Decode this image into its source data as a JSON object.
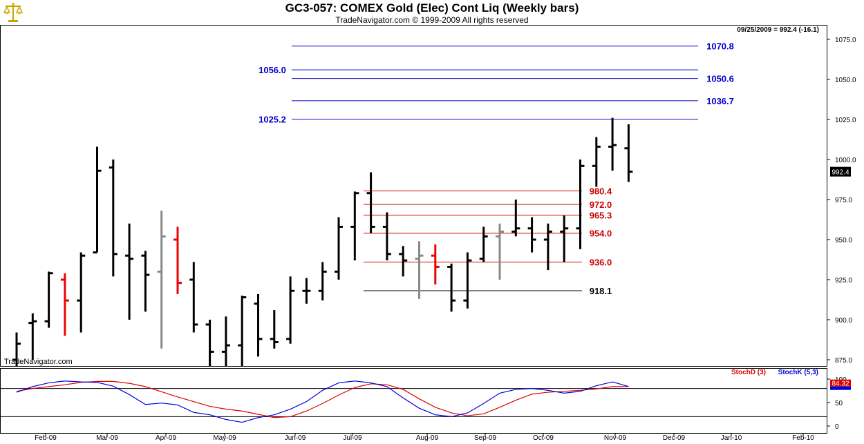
{
  "header": {
    "title": "GC3-057:  COMEX Gold (Elec) Cont Liq  (Weekly bars)",
    "subtitle": "TradeNavigator.com © 1999-2009 All rights reserved",
    "last_quote": "09/25/2009 = 992.4 (-16.1)",
    "watermark": "TradeNavigator.com",
    "logo_icon": "scales-of-justice-icon"
  },
  "chart_data": [
    {
      "type": "ohlc",
      "title": "GC3-057:  COMEX Gold (Elec) Cont Liq  (Weekly bars)",
      "ylim": [
        872,
        1085
      ],
      "y_ticks": [
        "875.0",
        "900.0",
        "925.0",
        "950.0",
        "975.0",
        "1000.0",
        "1025.0",
        "1050.0",
        "1075.0"
      ],
      "x_ticks": [
        "Feb-09",
        "Mar-09",
        "Apr-09",
        "May-09",
        "Jun-09",
        "Jul-09",
        "Aug-09",
        "Sep-09",
        "Oct-09",
        "Nov-09",
        "Dec-09",
        "Jan-10",
        "Feb-10"
      ],
      "last_price_label": "992.4",
      "bar_colors": {
        "up": "#000000",
        "down_red": "#ee0000",
        "neutral_gray": "#888888"
      },
      "bars": [
        {
          "week": 0,
          "open": 875,
          "high": 892,
          "low": 862,
          "close": 885,
          "color": "black"
        },
        {
          "week": 1,
          "open": 898,
          "high": 904,
          "low": 875,
          "close": 899,
          "color": "black"
        },
        {
          "week": 2,
          "open": 899,
          "high": 930,
          "low": 895,
          "close": 929,
          "color": "black"
        },
        {
          "week": 3,
          "open": 925,
          "high": 929,
          "low": 890,
          "close": 912,
          "color": "red"
        },
        {
          "week": 4,
          "open": 912,
          "high": 942,
          "low": 892,
          "close": 940,
          "color": "black"
        },
        {
          "week": 5,
          "open": 942,
          "high": 1008,
          "low": 942,
          "close": 993,
          "color": "black"
        },
        {
          "week": 6,
          "open": 995,
          "high": 1000,
          "low": 927,
          "close": 941,
          "color": "black"
        },
        {
          "week": 7,
          "open": 940,
          "high": 960,
          "low": 900,
          "close": 938,
          "color": "black"
        },
        {
          "week": 8,
          "open": 940,
          "high": 943,
          "low": 905,
          "close": 928,
          "color": "black"
        },
        {
          "week": 9,
          "open": 930,
          "high": 968,
          "low": 882,
          "close": 952,
          "color": "gray"
        },
        {
          "week": 10,
          "open": 950,
          "high": 958,
          "low": 916,
          "close": 923,
          "color": "red"
        },
        {
          "week": 11,
          "open": 925,
          "high": 936,
          "low": 892,
          "close": 897,
          "color": "black"
        },
        {
          "week": 12,
          "open": 897,
          "high": 900,
          "low": 866,
          "close": 880,
          "color": "black"
        },
        {
          "week": 13,
          "open": 880,
          "high": 902,
          "low": 860,
          "close": 884,
          "color": "black"
        },
        {
          "week": 14,
          "open": 884,
          "high": 915,
          "low": 870,
          "close": 914,
          "color": "black"
        },
        {
          "week": 15,
          "open": 910,
          "high": 916,
          "low": 877,
          "close": 888,
          "color": "black"
        },
        {
          "week": 16,
          "open": 888,
          "high": 906,
          "low": 882,
          "close": 886,
          "color": "black"
        },
        {
          "week": 17,
          "open": 888,
          "high": 927,
          "low": 885,
          "close": 918,
          "color": "black"
        },
        {
          "week": 18,
          "open": 918,
          "high": 926,
          "low": 910,
          "close": 918,
          "color": "black"
        },
        {
          "week": 19,
          "open": 918,
          "high": 936,
          "low": 912,
          "close": 930,
          "color": "black"
        },
        {
          "week": 20,
          "open": 930,
          "high": 964,
          "low": 925,
          "close": 958,
          "color": "black"
        },
        {
          "week": 21,
          "open": 958,
          "high": 980,
          "low": 937,
          "close": 979,
          "color": "black"
        },
        {
          "week": 22,
          "open": 979,
          "high": 992,
          "low": 954,
          "close": 958,
          "color": "black"
        },
        {
          "week": 23,
          "open": 958,
          "high": 967,
          "low": 937,
          "close": 941,
          "color": "black"
        },
        {
          "week": 24,
          "open": 941,
          "high": 946,
          "low": 927,
          "close": 937,
          "color": "black"
        },
        {
          "week": 25,
          "open": 938,
          "high": 949,
          "low": 913,
          "close": 940,
          "color": "gray"
        },
        {
          "week": 26,
          "open": 940,
          "high": 947,
          "low": 922,
          "close": 933,
          "color": "red"
        },
        {
          "week": 27,
          "open": 933,
          "high": 935,
          "low": 905,
          "close": 912,
          "color": "black"
        },
        {
          "week": 28,
          "open": 912,
          "high": 942,
          "low": 907,
          "close": 937,
          "color": "black"
        },
        {
          "week": 29,
          "open": 938,
          "high": 958,
          "low": 936,
          "close": 952,
          "color": "black"
        },
        {
          "week": 30,
          "open": 952,
          "high": 960,
          "low": 925,
          "close": 955,
          "color": "gray"
        },
        {
          "week": 31,
          "open": 955,
          "high": 975,
          "low": 952,
          "close": 957,
          "color": "black"
        },
        {
          "week": 32,
          "open": 957,
          "high": 964,
          "low": 942,
          "close": 950,
          "color": "black"
        },
        {
          "week": 33,
          "open": 950,
          "high": 960,
          "low": 931,
          "close": 955,
          "color": "black"
        },
        {
          "week": 34,
          "open": 955,
          "high": 965,
          "low": 936,
          "close": 957,
          "color": "black"
        },
        {
          "week": 35,
          "open": 957,
          "high": 1000,
          "low": 944,
          "close": 996,
          "color": "black"
        },
        {
          "week": 36,
          "open": 996,
          "high": 1014,
          "low": 983,
          "close": 1008,
          "color": "black"
        },
        {
          "week": 37,
          "open": 1008,
          "high": 1026,
          "low": 993,
          "close": 1009,
          "color": "black"
        },
        {
          "week": 38,
          "open": 1007,
          "high": 1022,
          "low": 986,
          "close": 992.4,
          "color": "black"
        }
      ],
      "blue_levels": [
        {
          "value": 1070.8,
          "label": "1070.8",
          "label_side": "right"
        },
        {
          "value": 1056.0,
          "label": "1056.0",
          "label_side": "left"
        },
        {
          "value": 1050.6,
          "label": "1050.6",
          "label_side": "right"
        },
        {
          "value": 1036.7,
          "label": "1036.7",
          "label_side": "right"
        },
        {
          "value": 1025.2,
          "label": "1025.2",
          "label_side": "left"
        }
      ],
      "red_levels": [
        {
          "value": 980.4,
          "label": "980.4"
        },
        {
          "value": 972.0,
          "label": "972.0"
        },
        {
          "value": 965.3,
          "label": "965.3"
        },
        {
          "value": 954.0,
          "label": "954.0"
        },
        {
          "value": 936.0,
          "label": "936.0"
        }
      ],
      "black_levels": [
        {
          "value": 918.1,
          "label": "918.1"
        }
      ],
      "level_colors": {
        "blue": "#0000cc",
        "red": "#cc0000",
        "black": "#000000"
      }
    },
    {
      "type": "line",
      "title": "",
      "ylim": [
        0,
        108
      ],
      "y_ticks": [
        "0",
        "50",
        "100"
      ],
      "reference_lines": [
        20,
        80
      ],
      "last_value_label": "84.32",
      "legend": "top-right",
      "series": [
        {
          "name": "StochD (3)",
          "color": "#dd0000",
          "values": [
            [
              0,
              74
            ],
            [
              1,
              80
            ],
            [
              2,
              84
            ],
            [
              3,
              88
            ],
            [
              4,
              93
            ],
            [
              5,
              95
            ],
            [
              6,
              95
            ],
            [
              7,
              91
            ],
            [
              8,
              84
            ],
            [
              9,
              73
            ],
            [
              10,
              62
            ],
            [
              11,
              52
            ],
            [
              12,
              42
            ],
            [
              13,
              36
            ],
            [
              14,
              32
            ],
            [
              15,
              25
            ],
            [
              16,
              18
            ],
            [
              17,
              20
            ],
            [
              18,
              32
            ],
            [
              19,
              48
            ],
            [
              20,
              66
            ],
            [
              21,
              82
            ],
            [
              22,
              90
            ],
            [
              23,
              88
            ],
            [
              24,
              78
            ],
            [
              25,
              58
            ],
            [
              26,
              40
            ],
            [
              27,
              28
            ],
            [
              28,
              22
            ],
            [
              29,
              26
            ],
            [
              30,
              40
            ],
            [
              31,
              55
            ],
            [
              32,
              68
            ],
            [
              33,
              72
            ],
            [
              34,
              74
            ],
            [
              35,
              76
            ],
            [
              36,
              79
            ],
            [
              37,
              84
            ],
            [
              38,
              84.3
            ]
          ]
        },
        {
          "name": "StochK (5,3)",
          "color": "#0000dd",
          "values": [
            [
              0,
              72
            ],
            [
              1,
              84
            ],
            [
              2,
              92
            ],
            [
              3,
              96
            ],
            [
              4,
              94
            ],
            [
              5,
              93
            ],
            [
              6,
              85
            ],
            [
              7,
              67
            ],
            [
              8,
              46
            ],
            [
              9,
              49
            ],
            [
              10,
              45
            ],
            [
              11,
              29
            ],
            [
              12,
              24
            ],
            [
              13,
              14
            ],
            [
              14,
              8
            ],
            [
              15,
              18
            ],
            [
              16,
              24
            ],
            [
              17,
              36
            ],
            [
              18,
              52
            ],
            [
              19,
              76
            ],
            [
              20,
              92
            ],
            [
              21,
              96
            ],
            [
              22,
              92
            ],
            [
              23,
              84
            ],
            [
              24,
              60
            ],
            [
              25,
              38
            ],
            [
              26,
              24
            ],
            [
              27,
              20
            ],
            [
              28,
              28
            ],
            [
              29,
              48
            ],
            [
              30,
              70
            ],
            [
              31,
              78
            ],
            [
              32,
              80
            ],
            [
              33,
              76
            ],
            [
              34,
              70
            ],
            [
              35,
              74
            ],
            [
              36,
              86
            ],
            [
              37,
              94
            ],
            [
              38,
              84.3
            ]
          ]
        }
      ]
    }
  ]
}
